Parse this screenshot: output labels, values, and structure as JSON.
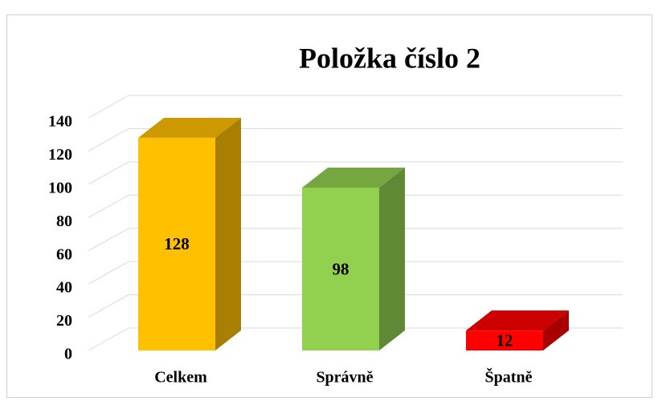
{
  "chart_data": {
    "type": "bar3d",
    "title": "Položka číslo 2",
    "categories": [
      "Celkem",
      "Správně",
      "Špatně"
    ],
    "values": [
      128,
      98,
      12
    ],
    "colors": [
      "#FFC000",
      "#92D050",
      "#FF0000"
    ],
    "ylim": [
      0,
      140
    ],
    "yticks": [
      0,
      20,
      40,
      60,
      80,
      100,
      120,
      140
    ],
    "grid": true
  }
}
